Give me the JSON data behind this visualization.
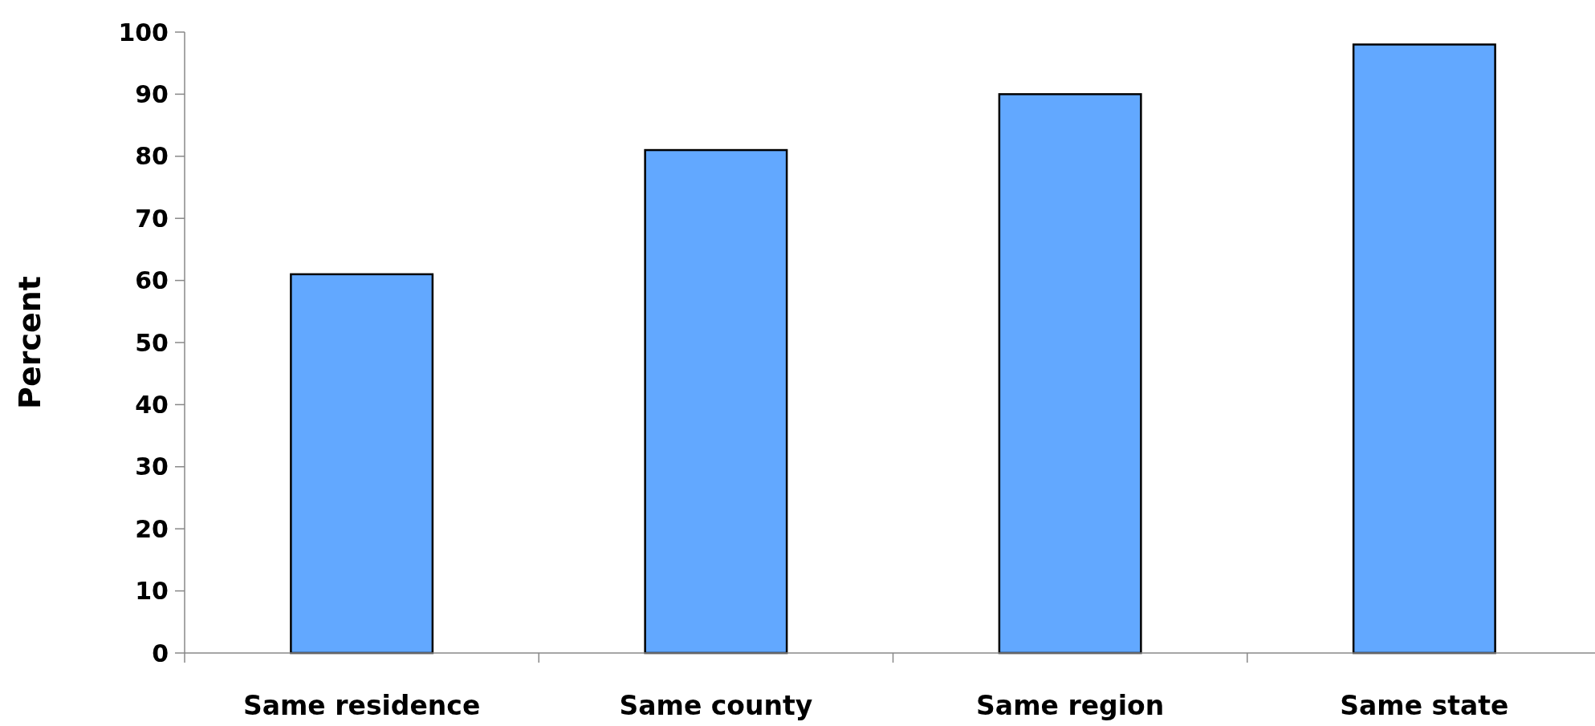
{
  "chart_data": {
    "type": "bar",
    "ylabel": "Percent",
    "categories": [
      "Same residence",
      "Same county",
      "Same region",
      "Same state"
    ],
    "values": [
      61,
      81,
      90,
      98
    ],
    "color": "#62a8ff",
    "ylim": [
      0,
      100
    ],
    "yticks": [
      0,
      10,
      20,
      30,
      40,
      50,
      60,
      70,
      80,
      90,
      100
    ],
    "grid": false
  }
}
